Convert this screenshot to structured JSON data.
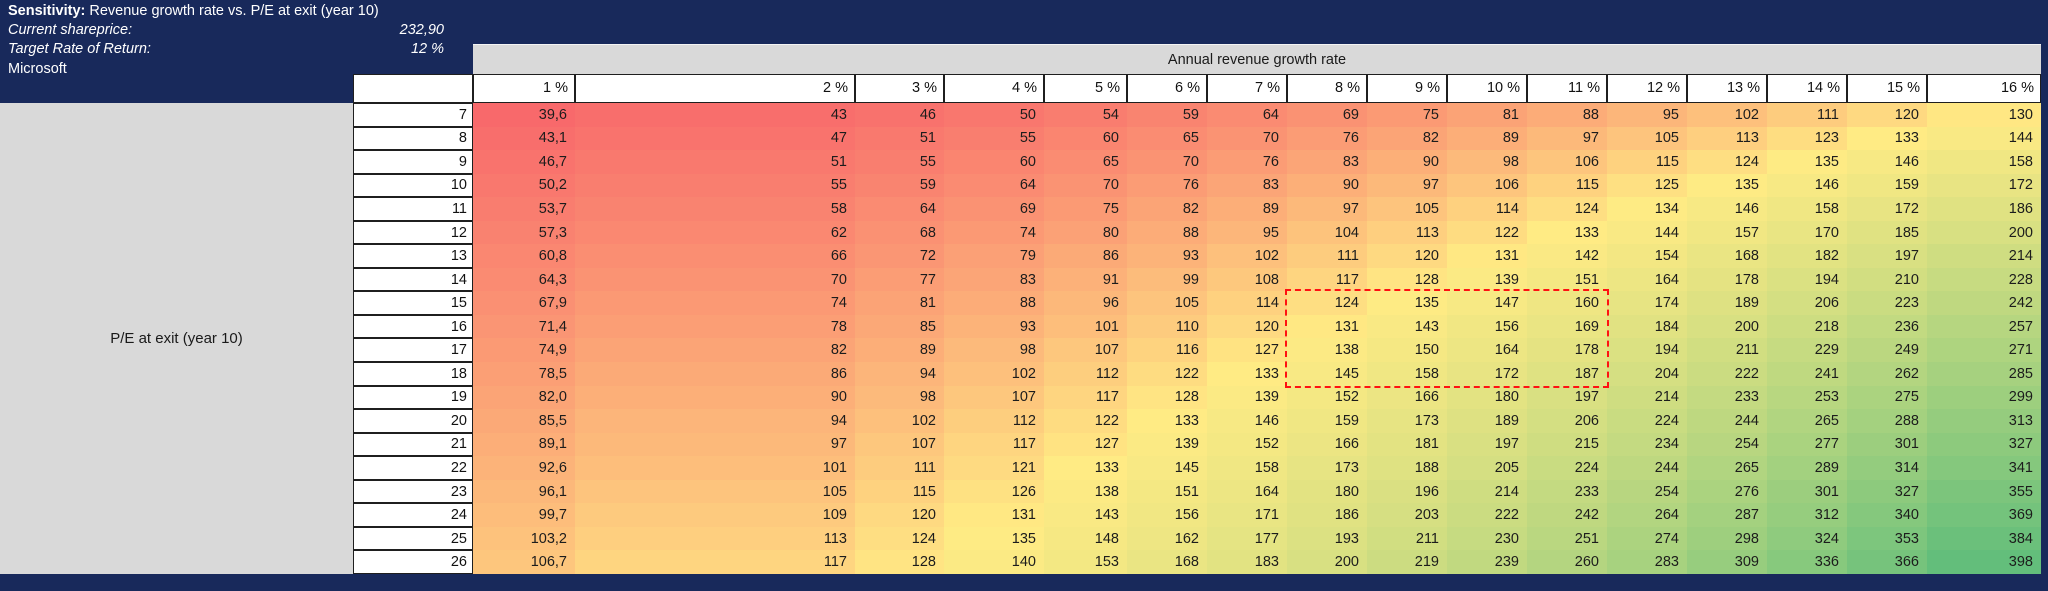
{
  "info": {
    "title_label": "Sensitivity:",
    "title_text": " Revenue growth rate vs. P/E at exit (year 10)",
    "shareprice_label": "Current shareprice:",
    "shareprice_value": "232,90",
    "target_label": "Target Rate of Return:",
    "target_value": "12 %",
    "company": "Microsoft"
  },
  "table": {
    "col_group_label": "Annual revenue growth rate",
    "row_group_label": "P/E at exit (year 10)",
    "col_headers": [
      "1 %",
      "2 %",
      "3 %",
      "4 %",
      "5 %",
      "6 %",
      "7 %",
      "8 %",
      "9 %",
      "10 %",
      "11 %",
      "12 %",
      "13 %",
      "14 %",
      "15 %",
      "16 %"
    ],
    "row_headers": [
      "7",
      "8",
      "9",
      "10",
      "11",
      "12",
      "13",
      "14",
      "15",
      "16",
      "17",
      "18",
      "19",
      "20",
      "21",
      "22",
      "23",
      "24",
      "25",
      "26"
    ],
    "cells": [
      [
        "39,6",
        "43",
        "46",
        "50",
        "54",
        "59",
        "64",
        "69",
        "75",
        "81",
        "88",
        "95",
        "102",
        "111",
        "120",
        "130"
      ],
      [
        "43,1",
        "47",
        "51",
        "55",
        "60",
        "65",
        "70",
        "76",
        "82",
        "89",
        "97",
        "105",
        "113",
        "123",
        "133",
        "144"
      ],
      [
        "46,7",
        "51",
        "55",
        "60",
        "65",
        "70",
        "76",
        "83",
        "90",
        "98",
        "106",
        "115",
        "124",
        "135",
        "146",
        "158"
      ],
      [
        "50,2",
        "55",
        "59",
        "64",
        "70",
        "76",
        "83",
        "90",
        "97",
        "106",
        "115",
        "125",
        "135",
        "146",
        "159",
        "172"
      ],
      [
        "53,7",
        "58",
        "64",
        "69",
        "75",
        "82",
        "89",
        "97",
        "105",
        "114",
        "124",
        "134",
        "146",
        "158",
        "172",
        "186"
      ],
      [
        "57,3",
        "62",
        "68",
        "74",
        "80",
        "88",
        "95",
        "104",
        "113",
        "122",
        "133",
        "144",
        "157",
        "170",
        "185",
        "200"
      ],
      [
        "60,8",
        "66",
        "72",
        "79",
        "86",
        "93",
        "102",
        "111",
        "120",
        "131",
        "142",
        "154",
        "168",
        "182",
        "197",
        "214"
      ],
      [
        "64,3",
        "70",
        "77",
        "83",
        "91",
        "99",
        "108",
        "117",
        "128",
        "139",
        "151",
        "164",
        "178",
        "194",
        "210",
        "228"
      ],
      [
        "67,9",
        "74",
        "81",
        "88",
        "96",
        "105",
        "114",
        "124",
        "135",
        "147",
        "160",
        "174",
        "189",
        "206",
        "223",
        "242"
      ],
      [
        "71,4",
        "78",
        "85",
        "93",
        "101",
        "110",
        "120",
        "131",
        "143",
        "156",
        "169",
        "184",
        "200",
        "218",
        "236",
        "257"
      ],
      [
        "74,9",
        "82",
        "89",
        "98",
        "107",
        "116",
        "127",
        "138",
        "150",
        "164",
        "178",
        "194",
        "211",
        "229",
        "249",
        "271"
      ],
      [
        "78,5",
        "86",
        "94",
        "102",
        "112",
        "122",
        "133",
        "145",
        "158",
        "172",
        "187",
        "204",
        "222",
        "241",
        "262",
        "285"
      ],
      [
        "82,0",
        "90",
        "98",
        "107",
        "117",
        "128",
        "139",
        "152",
        "166",
        "180",
        "197",
        "214",
        "233",
        "253",
        "275",
        "299"
      ],
      [
        "85,5",
        "94",
        "102",
        "112",
        "122",
        "133",
        "146",
        "159",
        "173",
        "189",
        "206",
        "224",
        "244",
        "265",
        "288",
        "313"
      ],
      [
        "89,1",
        "97",
        "107",
        "117",
        "127",
        "139",
        "152",
        "166",
        "181",
        "197",
        "215",
        "234",
        "254",
        "277",
        "301",
        "327"
      ],
      [
        "92,6",
        "101",
        "111",
        "121",
        "133",
        "145",
        "158",
        "173",
        "188",
        "205",
        "224",
        "244",
        "265",
        "289",
        "314",
        "341"
      ],
      [
        "96,1",
        "105",
        "115",
        "126",
        "138",
        "151",
        "164",
        "180",
        "196",
        "214",
        "233",
        "254",
        "276",
        "301",
        "327",
        "355"
      ],
      [
        "99,7",
        "109",
        "120",
        "131",
        "143",
        "156",
        "171",
        "186",
        "203",
        "222",
        "242",
        "264",
        "287",
        "312",
        "340",
        "369"
      ],
      [
        "103,2",
        "113",
        "124",
        "135",
        "148",
        "162",
        "177",
        "193",
        "211",
        "230",
        "251",
        "274",
        "298",
        "324",
        "353",
        "384"
      ],
      [
        "106,7",
        "117",
        "128",
        "140",
        "153",
        "168",
        "183",
        "200",
        "219",
        "239",
        "260",
        "283",
        "309",
        "336",
        "366",
        "398"
      ]
    ]
  },
  "highlight": {
    "pe_from": "15",
    "pe_to": "18",
    "growth_from": "8 %",
    "growth_to": "11 %"
  },
  "colors": {
    "navy": "#18295B",
    "panel_gray": "#D9D9D9",
    "scale_min": "#F8696B",
    "scale_mid": "#FFEB84",
    "scale_max": "#63BE7B",
    "highlight_border": "#FF1111"
  }
}
